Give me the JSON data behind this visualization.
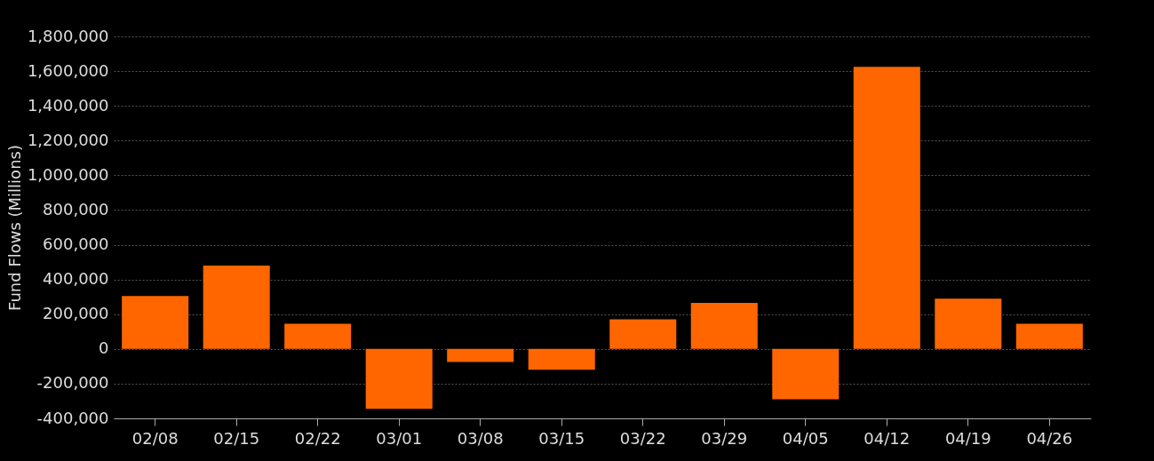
{
  "chart_data": {
    "type": "bar",
    "ylabel": "Fund Flows (Millions)",
    "categories": [
      "02/08",
      "02/15",
      "02/22",
      "03/01",
      "03/08",
      "03/15",
      "03/22",
      "03/29",
      "04/05",
      "04/12",
      "04/19",
      "04/26"
    ],
    "values": [
      305000,
      480000,
      145000,
      -345000,
      -75000,
      -120000,
      170000,
      265000,
      -290000,
      1625000,
      290000,
      145000
    ],
    "color": "#ff6600",
    "ylim": [
      -400000,
      1800000
    ],
    "yticks": [
      {
        "value": -400000,
        "label": "-400,000"
      },
      {
        "value": -200000,
        "label": "-200,000"
      },
      0,
      {
        "value": 200000,
        "label": "200,000"
      },
      {
        "value": 400000,
        "label": "400,000"
      },
      {
        "value": 600000,
        "label": "600,000"
      },
      {
        "value": 800000,
        "label": "800,000"
      },
      {
        "value": 1000000,
        "label": "1,000,000"
      },
      {
        "value": 1200000,
        "label": "1,200,000"
      },
      {
        "value": 1400000,
        "label": "1,400,000"
      },
      {
        "value": 1600000,
        "label": "1,600,000"
      },
      {
        "value": 1800000,
        "label": "1,800,000"
      }
    ],
    "grid": "y"
  }
}
